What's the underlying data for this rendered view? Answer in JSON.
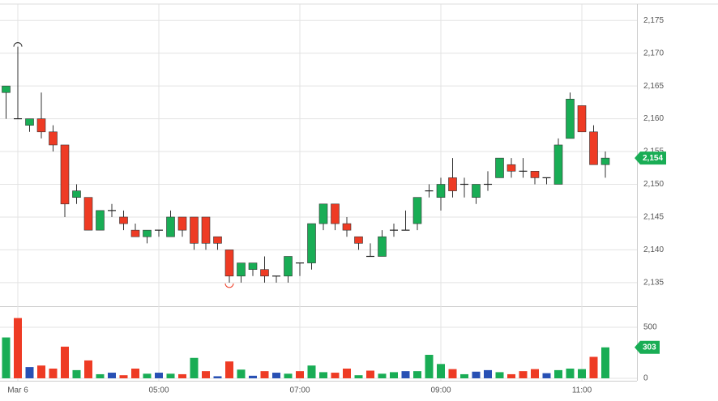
{
  "chart_data": {
    "type": "candlestick",
    "categories": [
      null,
      "Mar 6",
      null,
      null,
      null,
      null,
      null,
      null,
      null,
      null,
      null,
      null,
      null,
      "05:00",
      null,
      null,
      null,
      null,
      null,
      null,
      null,
      null,
      null,
      null,
      null,
      "07:00",
      null,
      null,
      null,
      null,
      null,
      null,
      null,
      null,
      null,
      null,
      null,
      "09:00",
      null,
      null,
      null,
      null,
      null,
      null,
      null,
      null,
      null,
      null,
      null,
      "11:00",
      null,
      null
    ],
    "price": {
      "open": [
        2164,
        2160,
        2159,
        2160,
        2158,
        2156,
        2148,
        2148,
        2143,
        2146,
        2145,
        2143,
        2142,
        2143,
        2142,
        2145,
        2145,
        2145,
        2142,
        2140,
        2136,
        2137,
        2137,
        2136,
        2136,
        2138,
        2138,
        2144,
        2147,
        2144,
        2142,
        2139,
        2139,
        2143,
        2143,
        2144,
        2149,
        2148,
        2151,
        2150,
        2148,
        2150,
        2151,
        2153,
        2152,
        2152,
        2151,
        2150,
        2157,
        2162,
        2158,
        2153
      ],
      "high": [
        2165,
        2171,
        2160,
        2164,
        2159,
        2156,
        2150,
        2148,
        2146,
        2147,
        2146,
        2144,
        2143,
        2143,
        2146,
        2145,
        2145,
        2145,
        2142,
        2140,
        2138,
        2138,
        2139,
        2136,
        2139,
        2138,
        2144,
        2147,
        2147,
        2145,
        2142,
        2141,
        2143,
        2144,
        2146,
        2148,
        2150,
        2151,
        2154,
        2151,
        2150,
        2152,
        2154,
        2154,
        2154,
        2152,
        2151,
        2157,
        2164,
        2162,
        2159,
        2155
      ],
      "low": [
        2160,
        2160,
        2158,
        2157,
        2155,
        2145,
        2147,
        2143,
        2143,
        2145,
        2143,
        2142,
        2141,
        2142,
        2142,
        2142,
        2140,
        2140,
        2140,
        2135,
        2135,
        2136,
        2135,
        2135,
        2135,
        2136,
        2137,
        2143,
        2143,
        2142,
        2140,
        2139,
        2139,
        2142,
        2143,
        2143,
        2148,
        2146,
        2148,
        2148,
        2147,
        2149,
        2151,
        2151,
        2151,
        2150,
        2150,
        2150,
        2157,
        2158,
        2153,
        2151
      ],
      "close": [
        2165,
        2160,
        2160,
        2158,
        2156,
        2147,
        2149,
        2143,
        2146,
        2146,
        2144,
        2142,
        2143,
        2143,
        2145,
        2143,
        2141,
        2141,
        2141,
        2136,
        2138,
        2138,
        2136,
        2136,
        2139,
        2138,
        2144,
        2147,
        2144,
        2143,
        2141,
        2139,
        2142,
        2143,
        2143,
        2148,
        2149,
        2150,
        2149,
        2150,
        2150,
        2150,
        2154,
        2152,
        2152,
        2151,
        2151,
        2156,
        2163,
        2158,
        2153,
        2154
      ],
      "up_color": "#19ad55",
      "down_color": "#ee3b24",
      "flat_color": "#222222",
      "ylim": [
        2131.4,
        2177.5
      ],
      "yticks": [
        {
          "value": 2135,
          "label": "2,135"
        },
        {
          "value": 2140,
          "label": "2,140"
        },
        {
          "value": 2145,
          "label": "2,145"
        },
        {
          "value": 2150,
          "label": "2,150"
        },
        {
          "value": 2155,
          "label": "2,155"
        },
        {
          "value": 2160,
          "label": "2,160"
        },
        {
          "value": 2165,
          "label": "2,165"
        },
        {
          "value": 2170,
          "label": "2,170"
        },
        {
          "value": 2175,
          "label": "2,175"
        }
      ],
      "last_label": "2,154"
    },
    "volume": {
      "values": [
        400,
        590,
        110,
        125,
        95,
        310,
        80,
        175,
        40,
        55,
        30,
        95,
        45,
        55,
        45,
        40,
        200,
        70,
        20,
        165,
        85,
        25,
        70,
        55,
        45,
        70,
        125,
        60,
        55,
        95,
        30,
        75,
        45,
        60,
        70,
        70,
        230,
        140,
        90,
        40,
        65,
        80,
        60,
        40,
        70,
        90,
        50,
        80,
        95,
        90,
        210,
        303
      ],
      "colors": [
        "#19ad55",
        "#ee3b24",
        "#2850b4",
        "#ee3b24",
        "#ee3b24",
        "#ee3b24",
        "#19ad55",
        "#ee3b24",
        "#19ad55",
        "#2850b4",
        "#ee3b24",
        "#ee3b24",
        "#19ad55",
        "#2850b4",
        "#19ad55",
        "#ee3b24",
        "#19ad55",
        "#ee3b24",
        "#2850b4",
        "#ee3b24",
        "#19ad55",
        "#2850b4",
        "#ee3b24",
        "#2850b4",
        "#19ad55",
        "#ee3b24",
        "#19ad55",
        "#19ad55",
        "#ee3b24",
        "#ee3b24",
        "#19ad55",
        "#ee3b24",
        "#19ad55",
        "#19ad55",
        "#2850b4",
        "#19ad55",
        "#19ad55",
        "#19ad55",
        "#ee3b24",
        "#19ad55",
        "#2850b4",
        "#2850b4",
        "#19ad55",
        "#ee3b24",
        "#ee3b24",
        "#ee3b24",
        "#2850b4",
        "#19ad55",
        "#19ad55",
        "#19ad55",
        "#ee3b24",
        "#19ad55"
      ],
      "ylim": [
        -24,
        690
      ],
      "yticks": [
        0,
        500
      ]
    }
  }
}
